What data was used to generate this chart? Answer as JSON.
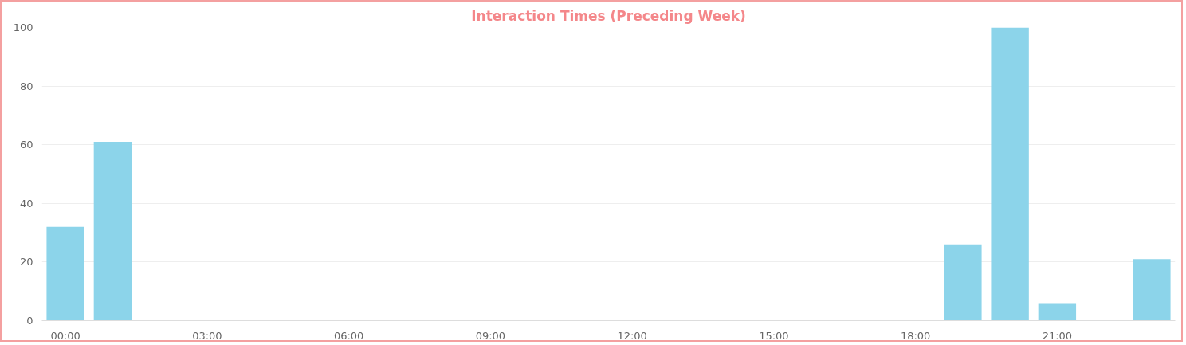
{
  "chart_data": {
    "type": "bar",
    "title": "Interaction Times (Preceding Week)",
    "x": [
      0,
      1,
      2,
      3,
      4,
      5,
      6,
      7,
      8,
      9,
      10,
      11,
      12,
      13,
      14,
      15,
      16,
      17,
      18,
      19,
      20,
      21,
      22,
      23
    ],
    "values": [
      32,
      61,
      0,
      0,
      0,
      0,
      0,
      0,
      0,
      0,
      0,
      0,
      0,
      0,
      0,
      0,
      0,
      0,
      0,
      26,
      100,
      6,
      0,
      21
    ],
    "color": "#8cd4ea",
    "xlim": [
      -0.5,
      23.5
    ],
    "xticks": [
      {
        "value": 0,
        "label": "00:00"
      },
      {
        "value": 3,
        "label": "03:00"
      },
      {
        "value": 6,
        "label": "06:00"
      },
      {
        "value": 9,
        "label": "09:00"
      },
      {
        "value": 12,
        "label": "12:00"
      },
      {
        "value": 15,
        "label": "15:00"
      },
      {
        "value": 18,
        "label": "18:00"
      },
      {
        "value": 21,
        "label": "21:00"
      }
    ],
    "ylim": [
      0,
      100
    ],
    "yticks": [
      0,
      20,
      40,
      60,
      80,
      100
    ],
    "grid": "y"
  }
}
